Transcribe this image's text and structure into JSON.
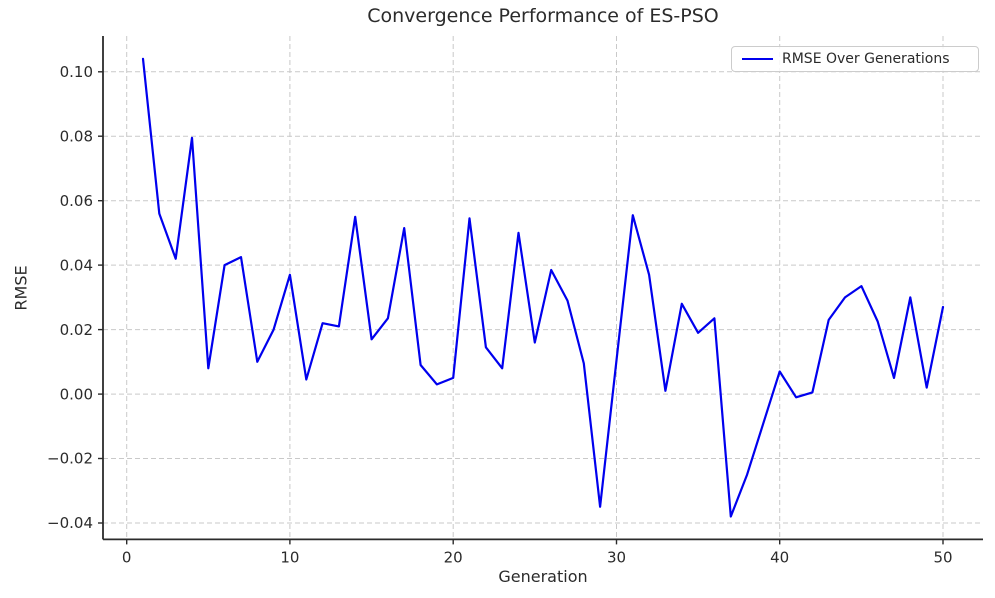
{
  "chart_data": {
    "type": "line",
    "title": "Convergence Performance of ES-PSO",
    "xlabel": "Generation",
    "ylabel": "RMSE",
    "legend": {
      "label": "RMSE Over Generations",
      "position": "upper right"
    },
    "line_color": "#0000ee",
    "grid": true,
    "grid_style": "dashed",
    "grid_color": "#c9c9c9",
    "axis_color": "#2b2b2b",
    "text_color": "#2b2b2b",
    "xlim": [
      -1.45,
      52.45
    ],
    "ylim": [
      -0.0451,
      0.1111
    ],
    "x_ticks": {
      "values": [
        0,
        10,
        20,
        30,
        40,
        50
      ],
      "labels": [
        "0",
        "10",
        "20",
        "30",
        "40",
        "50"
      ]
    },
    "y_ticks": {
      "values": [
        0.1,
        0.08,
        0.06,
        0.04,
        0.02,
        0.0,
        -0.02,
        -0.04
      ],
      "labels": [
        "0.10",
        "0.08",
        "0.06",
        "0.04",
        "0.02",
        "0.00",
        "−0.02",
        "−0.04"
      ]
    },
    "x": [
      1,
      2,
      3,
      4,
      5,
      6,
      7,
      8,
      9,
      10,
      11,
      12,
      13,
      14,
      15,
      16,
      17,
      18,
      19,
      20,
      21,
      22,
      23,
      24,
      25,
      26,
      27,
      28,
      29,
      30,
      31,
      32,
      33,
      34,
      35,
      36,
      37,
      38,
      39,
      40,
      41,
      42,
      43,
      44,
      45,
      46,
      47,
      48,
      49,
      50
    ],
    "values": [
      0.104,
      0.056,
      0.042,
      0.0795,
      0.008,
      0.04,
      0.0425,
      0.01,
      0.02,
      0.037,
      0.0045,
      0.022,
      0.021,
      0.055,
      0.017,
      0.0235,
      0.0515,
      0.009,
      0.003,
      0.005,
      0.0545,
      0.0145,
      0.008,
      0.05,
      0.016,
      0.0385,
      0.029,
      0.0095,
      -0.035,
      0.0105,
      0.0555,
      0.037,
      0.001,
      0.028,
      0.019,
      0.0235,
      -0.038,
      -0.025,
      -0.009,
      0.007,
      -0.001,
      0.0005,
      0.023,
      0.03,
      0.0335,
      0.0225,
      0.005,
      0.03,
      0.002,
      0.027
    ]
  }
}
